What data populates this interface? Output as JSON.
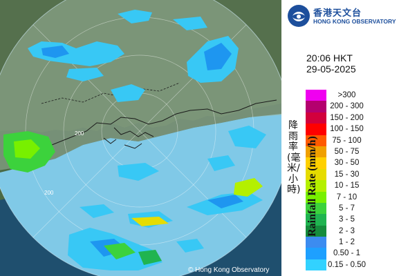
{
  "map": {
    "copyright": "© Hong Kong Observatory",
    "range_labels": [
      "200",
      "200"
    ],
    "colors": {
      "sea": "#1f5a7a",
      "land": "#4f6b4a",
      "coverage": "#7ec7e6"
    }
  },
  "logo": {
    "name_zh": "香港天文台",
    "name_en": "HONG KONG OBSERVATORY"
  },
  "timestamp": {
    "time": "20:06 HKT",
    "date": "29-05-2025"
  },
  "legend": {
    "title_zh": "降雨率(毫米/小時)",
    "title_en": "Rainfall Rate (mm/h)",
    "items": [
      {
        "label": ">300",
        "color": "#f000f0"
      },
      {
        "label": "200 - 300",
        "color": "#b4006e"
      },
      {
        "label": "150 - 200",
        "color": "#d2003c"
      },
      {
        "label": "100 - 150",
        "color": "#ff0000"
      },
      {
        "label": "75 - 100",
        "color": "#ff5a00"
      },
      {
        "label": "50 - 75",
        "color": "#f0a000"
      },
      {
        "label": "30 - 50",
        "color": "#ffd000"
      },
      {
        "label": "15 - 30",
        "color": "#e6dc00"
      },
      {
        "label": "10 - 15",
        "color": "#b4f000"
      },
      {
        "label": "7 - 10",
        "color": "#78f000"
      },
      {
        "label": "5 - 7",
        "color": "#3cd23c"
      },
      {
        "label": "3 - 5",
        "color": "#20b450"
      },
      {
        "label": "2 - 3",
        "color": "#168c3c"
      },
      {
        "label": "1 - 2",
        "color": "#3c8cf0"
      },
      {
        "label": "0.50 - 1",
        "color": "#1ea0ff"
      },
      {
        "label": "0.15 - 0.50",
        "color": "#32d2ff"
      }
    ]
  }
}
